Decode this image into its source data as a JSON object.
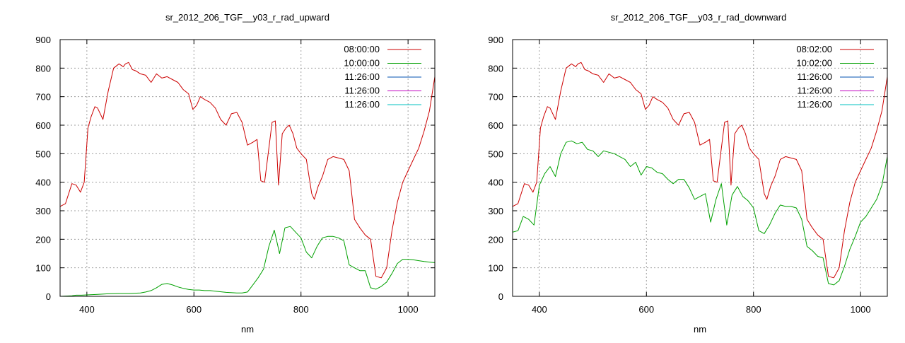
{
  "chart_data": [
    {
      "type": "line",
      "title": "sr_2012_206_TGF__y03_r_rad_upward",
      "xlabel": "nm",
      "ylabel": "",
      "xlim": [
        350,
        1050
      ],
      "ylim": [
        0,
        900
      ],
      "xticks": [
        400,
        600,
        800,
        1000
      ],
      "yticks": [
        0,
        100,
        200,
        300,
        400,
        500,
        600,
        700,
        800,
        900
      ],
      "grid": true,
      "legend_position": "top-right",
      "series": [
        {
          "name": "08:00:00",
          "color": "#cc0000",
          "x": [
            350,
            360,
            372,
            380,
            388,
            395,
            402,
            408,
            415,
            420,
            430,
            440,
            450,
            460,
            468,
            472,
            478,
            485,
            492,
            500,
            510,
            520,
            530,
            540,
            550,
            560,
            570,
            580,
            590,
            598,
            605,
            612,
            620,
            630,
            640,
            650,
            660,
            670,
            680,
            690,
            700,
            710,
            718,
            725,
            732,
            740,
            746,
            752,
            758,
            765,
            772,
            778,
            785,
            792,
            800,
            810,
            820,
            825,
            832,
            840,
            850,
            860,
            870,
            880,
            890,
            900,
            910,
            920,
            930,
            940,
            950,
            960,
            970,
            980,
            990,
            1000,
            1010,
            1020,
            1030,
            1040,
            1050
          ],
          "values": [
            315,
            325,
            395,
            390,
            365,
            400,
            590,
            630,
            665,
            660,
            620,
            720,
            800,
            815,
            805,
            815,
            820,
            795,
            790,
            780,
            775,
            750,
            780,
            765,
            770,
            760,
            750,
            725,
            710,
            655,
            670,
            700,
            690,
            680,
            660,
            620,
            600,
            640,
            645,
            610,
            530,
            540,
            550,
            405,
            400,
            520,
            610,
            615,
            390,
            570,
            590,
            600,
            570,
            520,
            500,
            480,
            360,
            340,
            385,
            420,
            480,
            490,
            485,
            480,
            440,
            270,
            240,
            215,
            200,
            70,
            65,
            100,
            230,
            330,
            400,
            440,
            480,
            520,
            580,
            650,
            770
          ]
        },
        {
          "name": "10:00:00",
          "color": "#00a000",
          "x": [
            350,
            360,
            372,
            380,
            390,
            400,
            410,
            420,
            440,
            460,
            480,
            500,
            510,
            520,
            530,
            540,
            550,
            560,
            570,
            580,
            590,
            600,
            610,
            620,
            630,
            640,
            660,
            680,
            690,
            700,
            710,
            720,
            730,
            740,
            750,
            760,
            770,
            780,
            790,
            800,
            810,
            820,
            830,
            840,
            850,
            860,
            870,
            880,
            890,
            900,
            910,
            920,
            930,
            940,
            950,
            960,
            970,
            980,
            990,
            1000,
            1010,
            1020,
            1030,
            1040,
            1050
          ],
          "values": [
            0,
            1,
            2,
            4,
            4,
            5,
            6,
            7,
            9,
            10,
            10,
            12,
            15,
            20,
            30,
            42,
            45,
            40,
            33,
            28,
            24,
            22,
            22,
            20,
            20,
            18,
            14,
            12,
            12,
            15,
            40,
            65,
            95,
            175,
            232,
            150,
            240,
            245,
            225,
            205,
            155,
            135,
            175,
            205,
            210,
            210,
            205,
            195,
            110,
            100,
            90,
            90,
            30,
            25,
            35,
            50,
            80,
            115,
            130,
            130,
            128,
            125,
            122,
            120,
            118
          ]
        },
        {
          "name": "11:26:00",
          "color": "#0050b0",
          "x": [],
          "values": []
        },
        {
          "name": "11:26:00",
          "color": "#c000c0",
          "x": [],
          "values": []
        },
        {
          "name": "11:26:00",
          "color": "#00c0c0",
          "x": [],
          "values": []
        }
      ]
    },
    {
      "type": "line",
      "title": "sr_2012_206_TGF__y03_r_rad_downward",
      "xlabel": "nm",
      "ylabel": "",
      "xlim": [
        350,
        1050
      ],
      "ylim": [
        0,
        900
      ],
      "xticks": [
        400,
        600,
        800,
        1000
      ],
      "yticks": [
        0,
        100,
        200,
        300,
        400,
        500,
        600,
        700,
        800,
        900
      ],
      "grid": true,
      "legend_position": "top-right",
      "series": [
        {
          "name": "08:02:00",
          "color": "#cc0000",
          "x": [
            350,
            360,
            372,
            380,
            388,
            395,
            402,
            408,
            415,
            420,
            430,
            440,
            450,
            460,
            468,
            472,
            478,
            485,
            492,
            500,
            510,
            520,
            530,
            540,
            550,
            560,
            570,
            580,
            590,
            598,
            605,
            612,
            620,
            630,
            640,
            650,
            660,
            670,
            680,
            690,
            700,
            710,
            718,
            725,
            732,
            740,
            746,
            752,
            758,
            765,
            772,
            778,
            785,
            792,
            800,
            810,
            820,
            825,
            832,
            840,
            850,
            860,
            870,
            880,
            890,
            900,
            910,
            920,
            930,
            940,
            950,
            960,
            970,
            980,
            990,
            1000,
            1010,
            1020,
            1030,
            1040,
            1050
          ],
          "values": [
            315,
            325,
            395,
            390,
            365,
            400,
            590,
            630,
            665,
            660,
            620,
            720,
            800,
            815,
            805,
            815,
            820,
            795,
            790,
            780,
            775,
            750,
            780,
            765,
            770,
            760,
            750,
            725,
            710,
            655,
            670,
            700,
            690,
            680,
            660,
            620,
            600,
            640,
            645,
            610,
            530,
            540,
            550,
            405,
            400,
            520,
            610,
            615,
            390,
            570,
            590,
            600,
            570,
            520,
            500,
            480,
            360,
            340,
            385,
            420,
            480,
            490,
            485,
            480,
            440,
            270,
            240,
            215,
            200,
            70,
            65,
            100,
            230,
            330,
            400,
            440,
            480,
            520,
            580,
            650,
            770
          ]
        },
        {
          "name": "10:02:00",
          "color": "#00a000",
          "x": [
            350,
            360,
            370,
            380,
            390,
            400,
            410,
            420,
            430,
            440,
            450,
            460,
            470,
            480,
            490,
            500,
            510,
            520,
            530,
            540,
            550,
            560,
            570,
            580,
            590,
            600,
            610,
            620,
            630,
            640,
            650,
            660,
            670,
            680,
            690,
            700,
            710,
            720,
            730,
            740,
            750,
            760,
            770,
            780,
            790,
            800,
            810,
            820,
            830,
            840,
            850,
            860,
            870,
            880,
            890,
            900,
            910,
            920,
            930,
            940,
            950,
            960,
            970,
            980,
            990,
            1000,
            1010,
            1020,
            1030,
            1040,
            1050
          ],
          "values": [
            225,
            230,
            280,
            270,
            250,
            390,
            430,
            455,
            420,
            500,
            540,
            545,
            535,
            540,
            515,
            510,
            490,
            510,
            505,
            500,
            490,
            480,
            455,
            470,
            425,
            455,
            450,
            435,
            430,
            410,
            395,
            410,
            410,
            380,
            340,
            350,
            360,
            260,
            340,
            395,
            250,
            355,
            385,
            350,
            335,
            310,
            230,
            220,
            250,
            290,
            320,
            315,
            315,
            310,
            270,
            175,
            160,
            140,
            135,
            45,
            40,
            55,
            105,
            165,
            210,
            260,
            280,
            310,
            340,
            390,
            490
          ]
        },
        {
          "name": "11:26:00",
          "color": "#0050b0",
          "x": [],
          "values": []
        },
        {
          "name": "11:26:00",
          "color": "#c000c0",
          "x": [],
          "values": []
        },
        {
          "name": "11:26:00",
          "color": "#00c0c0",
          "x": [],
          "values": []
        }
      ]
    }
  ]
}
